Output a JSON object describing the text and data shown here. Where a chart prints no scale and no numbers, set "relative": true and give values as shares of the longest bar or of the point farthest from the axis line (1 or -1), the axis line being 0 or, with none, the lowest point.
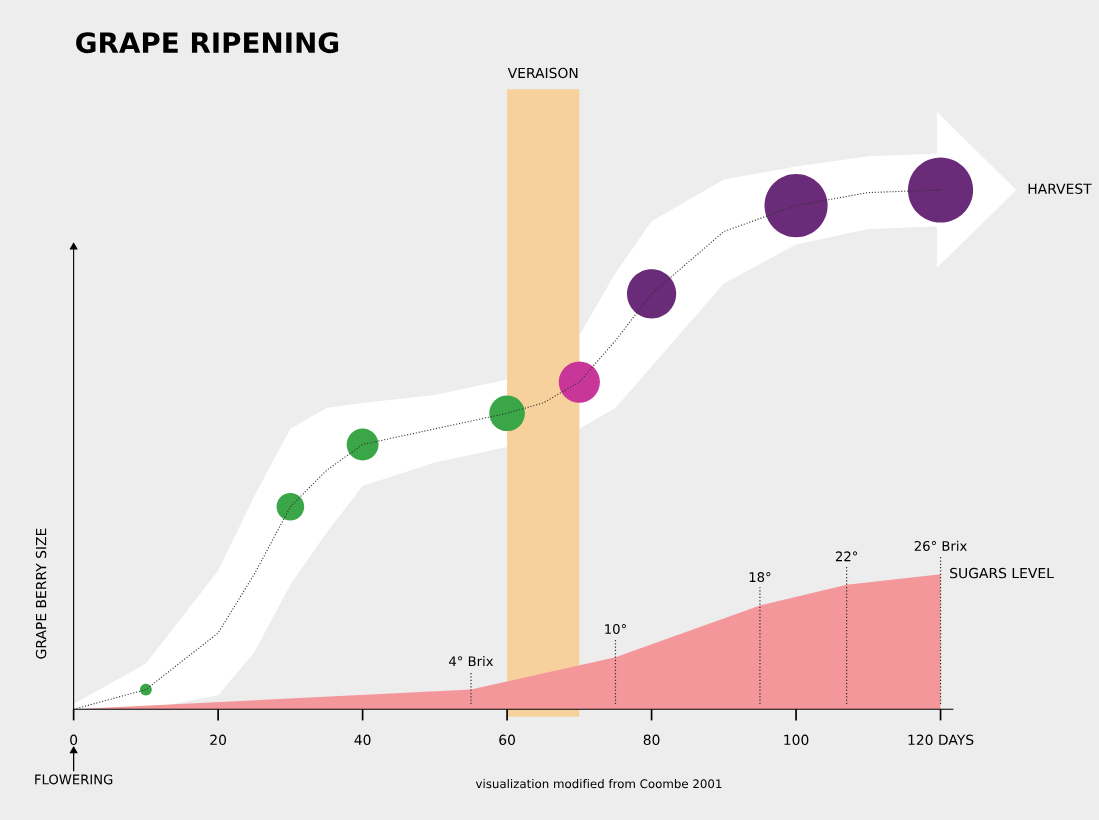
{
  "chart_data": {
    "type": "bubble",
    "title": "GRAPE RIPENING",
    "ylabel": "GRAPE BERRY SIZE",
    "relative": true,
    "xlim": [
      0,
      121.7
    ],
    "xticks": [
      0,
      20,
      40,
      60,
      80,
      100,
      {
        "value": 120,
        "label": "120 DAYS"
      }
    ],
    "tick_labels": "x",
    "grid": false,
    "series": [
      {
        "type": "area",
        "name": "SUGARS LEVEL",
        "color": "#f4979a",
        "x": [
          0,
          55,
          75,
          95,
          107,
          120
        ],
        "values": [
          0,
          0.038,
          0.1,
          0.2,
          0.24,
          0.26
        ]
      },
      {
        "type": "line",
        "name": "HARVEST",
        "color": "#333333",
        "line_style": "dotted",
        "marker": "none",
        "x": [
          0,
          10,
          20,
          25,
          30,
          35,
          40,
          50,
          60,
          65,
          70,
          75,
          80,
          90,
          100,
          110,
          120
        ],
        "values": [
          0,
          0.038,
          0.147,
          0.26,
          0.39,
          0.46,
          0.51,
          0.54,
          0.57,
          0.59,
          0.63,
          0.71,
          0.8,
          0.92,
          0.97,
          0.995,
          1.0
        ],
        "lower": [
          0,
          0,
          0.027,
          0.11,
          0.24,
          0.34,
          0.43,
          0.475,
          0.505,
          null,
          0.54,
          0.58,
          0.66,
          0.82,
          0.895,
          0.925,
          0.93
        ],
        "upper": [
          0.01,
          0.088,
          0.267,
          0.41,
          0.54,
          0.58,
          0.59,
          0.605,
          0.635,
          null,
          0.72,
          0.84,
          0.94,
          1.02,
          1.045,
          1.065,
          1.07
        ]
      },
      {
        "x": [
          10,
          30,
          40,
          60,
          70,
          80,
          100,
          120
        ],
        "values": [
          0.038,
          0.39,
          0.51,
          0.57,
          0.63,
          0.8,
          0.97,
          1.0
        ],
        "sizes": [
          0.033,
          0.18,
          0.24,
          0.3,
          0.4,
          0.57,
          0.94,
          1.0
        ],
        "colors": [
          "#3aa648",
          "#3aa648",
          "#3aa648",
          "#3aa648",
          "#c9369a",
          "#6a2b78",
          "#6a2b78",
          "#6a2b78"
        ]
      }
    ],
    "bands": [
      {
        "axis": "x",
        "from": 60,
        "to": 70,
        "label": "VERAISON",
        "color": "#f7d19c"
      }
    ],
    "annotations": [
      {
        "text": "4° Brix",
        "x": 55,
        "y": 0.038
      },
      {
        "text": "10°",
        "x": 75,
        "y": 0.1
      },
      {
        "text": "18°",
        "x": 95,
        "y": 0.2
      },
      {
        "text": "22°",
        "x": 107,
        "y": 0.24
      },
      {
        "text": "26° Brix",
        "x": 120,
        "y": 0.26
      },
      {
        "text": "FLOWERING",
        "x": 0
      },
      "visualization modified from Coombe 2001"
    ]
  }
}
